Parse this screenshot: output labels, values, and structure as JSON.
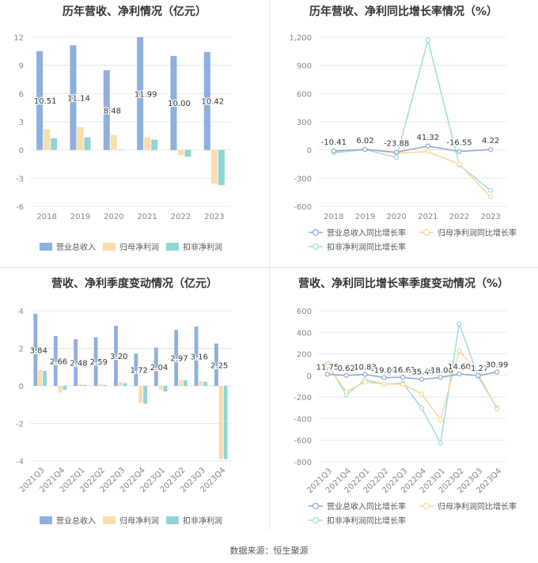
{
  "colors": {
    "revenue": "#8fb0dc",
    "net_profit": "#fbdcaa",
    "deducted_profit": "#8fd6d6",
    "grid": "#e8e8e8",
    "axis_text": "#888888"
  },
  "legend": {
    "revenue": "营业总收入",
    "net_profit": "归母净利润",
    "deducted_profit": "扣非净利润",
    "revenue_growth": "营业总收入同比增长率",
    "net_profit_growth": "归母净利润同比增长率",
    "deducted_profit_growth": "扣非净利润同比增长率"
  },
  "source": "数据来源：恒生聚源",
  "chart_data": [
    {
      "type": "bar",
      "title": "历年营收、净利情况（亿元）",
      "categories": [
        "2018",
        "2019",
        "2020",
        "2021",
        "2022",
        "2023"
      ],
      "ylim": [
        -6,
        12
      ],
      "yticks": [
        -6,
        -3,
        0,
        3,
        6,
        9,
        12
      ],
      "series": [
        {
          "name": "营业总收入",
          "values": [
            10.51,
            11.14,
            8.48,
            11.99,
            10.0,
            10.42
          ],
          "labels": [
            "10.51",
            "11.14",
            "8.48",
            "11.99",
            "10.00",
            "10.42"
          ]
        },
        {
          "name": "归母净利润",
          "values": [
            2.2,
            2.45,
            1.6,
            1.35,
            -0.55,
            -3.6
          ]
        },
        {
          "name": "扣非净利润",
          "values": [
            1.25,
            1.35,
            0.05,
            1.1,
            -0.7,
            -3.75
          ]
        }
      ],
      "grid": true,
      "legend_position": "bottom"
    },
    {
      "type": "line",
      "title": "历年营收、净利同比增长率情况（%）",
      "categories": [
        "2018",
        "2019",
        "2020",
        "2021",
        "2022",
        "2023"
      ],
      "ylim": [
        -600,
        1200
      ],
      "yticks": [
        -600,
        -300,
        0,
        300,
        600,
        900,
        1200
      ],
      "ytick_labels": [
        "-600",
        "-300",
        "0",
        "300",
        "600",
        "900",
        "1,200"
      ],
      "series": [
        {
          "name": "营业总收入同比增长率",
          "values": [
            -10.41,
            6.02,
            -23.88,
            41.32,
            -16.55,
            4.22
          ],
          "labels": [
            "-10.41",
            "6.02",
            "-23.88",
            "41.32",
            "-16.55",
            "4.22"
          ]
        },
        {
          "name": "归母净利润同比增长率",
          "values": [
            -15,
            8,
            -35,
            -18,
            -150,
            -500
          ]
        },
        {
          "name": "扣非净利润同比增长率",
          "values": [
            -30,
            5,
            -80,
            1170,
            -160,
            -430
          ]
        }
      ],
      "grid": true,
      "legend_position": "bottom"
    },
    {
      "type": "bar",
      "title": "营收、净利季度变动情况（亿元）",
      "categories": [
        "2021Q3",
        "2021Q4",
        "2022Q1",
        "2022Q2",
        "2022Q3",
        "2022Q4",
        "2023Q1",
        "2023Q2",
        "2023Q3",
        "2023Q4"
      ],
      "ylim": [
        -4,
        4
      ],
      "yticks": [
        -4,
        -2,
        0,
        2,
        4
      ],
      "series": [
        {
          "name": "营业总收入",
          "values": [
            3.84,
            2.66,
            2.48,
            2.59,
            3.2,
            1.72,
            2.04,
            2.97,
            3.16,
            2.25
          ],
          "labels": [
            "3.84",
            "2.66",
            "2.48",
            "2.59",
            "3.20",
            "1.72",
            "2.04",
            "2.97",
            "3.16",
            "2.25"
          ]
        },
        {
          "name": "归母净利润",
          "values": [
            0.85,
            -0.35,
            0.1,
            0.1,
            0.2,
            -0.9,
            -0.2,
            0.3,
            0.25,
            -3.9
          ]
        },
        {
          "name": "扣非净利润",
          "values": [
            0.8,
            -0.2,
            0.05,
            0.05,
            0.15,
            -0.95,
            -0.3,
            0.3,
            0.22,
            -3.9
          ]
        }
      ],
      "grid": true,
      "legend_position": "bottom"
    },
    {
      "type": "line",
      "title": "营收、净利同比增长率季度变动情况（%）",
      "categories": [
        "2021Q3",
        "2021Q4",
        "2022Q1",
        "2022Q2",
        "2022Q3",
        "2022Q4",
        "2023Q1",
        "2023Q2",
        "2023Q3",
        "2023Q4"
      ],
      "ylim": [
        -800,
        600
      ],
      "yticks": [
        -800,
        -600,
        -400,
        -200,
        0,
        200,
        400,
        600
      ],
      "series": [
        {
          "name": "营业总收入同比增长率",
          "values": [
            11.75,
            0.62,
            10.83,
            -19.89,
            -16.61,
            -35.44,
            -18.06,
            14.6,
            -1.27,
            30.99
          ],
          "labels": [
            "11.75",
            "0.62",
            "10.83",
            "-19.89",
            "-16.61",
            "-35.44",
            "-18.06",
            "14.60",
            "-1.27",
            "30.99"
          ]
        },
        {
          "name": "归母净利润同比增长率",
          "values": [
            90,
            -150,
            -60,
            -80,
            -80,
            -170,
            -410,
            230,
            20,
            -310
          ]
        },
        {
          "name": "扣非净利润同比增长率",
          "values": [
            110,
            -180,
            -40,
            -80,
            -70,
            -300,
            -625,
            480,
            -10,
            -300
          ]
        }
      ],
      "grid": true,
      "legend_position": "bottom"
    }
  ]
}
